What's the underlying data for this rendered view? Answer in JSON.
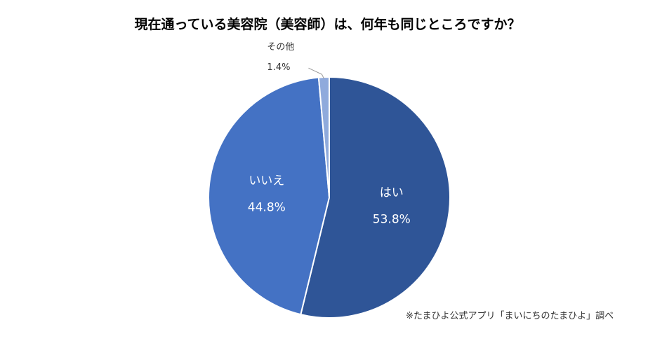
{
  "chart_data": {
    "type": "pie",
    "title": "現在通っている美容院（美容師）は、何年も同じところですか？",
    "source": "※たまひよ公式アプリ「まいにちのたまひよ」調べ",
    "slices": [
      {
        "label": "はい",
        "value": 53.8,
        "value_label": "53.8%",
        "color": "#2F5597"
      },
      {
        "label": "いいえ",
        "value": 44.8,
        "value_label": "44.8%",
        "color": "#4472C4"
      },
      {
        "label": "その他",
        "value": 1.4,
        "value_label": "1.4%",
        "color": "#8FAADC"
      }
    ],
    "start": "top",
    "direction": "clockwise",
    "legend": "none"
  }
}
